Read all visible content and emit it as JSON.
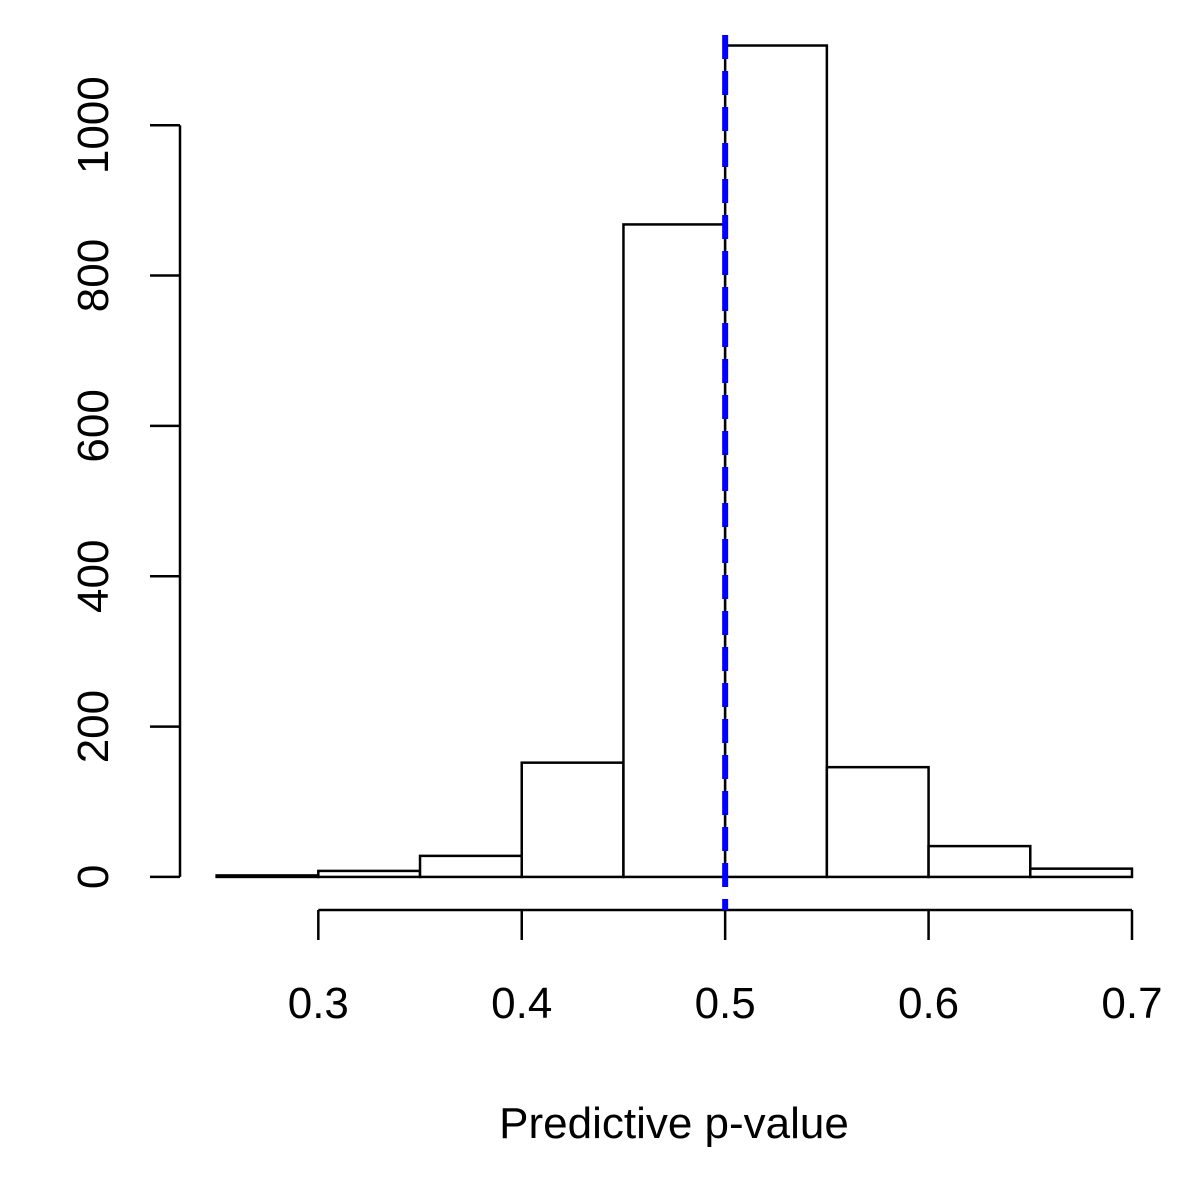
{
  "chart_data": {
    "type": "histogram",
    "xlabel": "Predictive p-value",
    "bins": [
      0.25,
      0.3,
      0.35,
      0.4,
      0.45,
      0.5,
      0.55,
      0.6,
      0.65,
      0.7
    ],
    "values": [
      2,
      8,
      28,
      152,
      868,
      1106,
      146,
      41,
      11
    ],
    "color": "#ffffff",
    "edgecolor": "#000000",
    "xlim": [
      0.232,
      0.718
    ],
    "ylim": [
      -44,
      1120
    ],
    "xticks": [
      0.3,
      0.4,
      0.5,
      0.6,
      0.7
    ],
    "yticks": [
      0,
      200,
      400,
      600,
      800,
      1000
    ],
    "vline": 0.5,
    "vline_color": "#0000ff",
    "vline_style": "dashed",
    "grid": false
  }
}
